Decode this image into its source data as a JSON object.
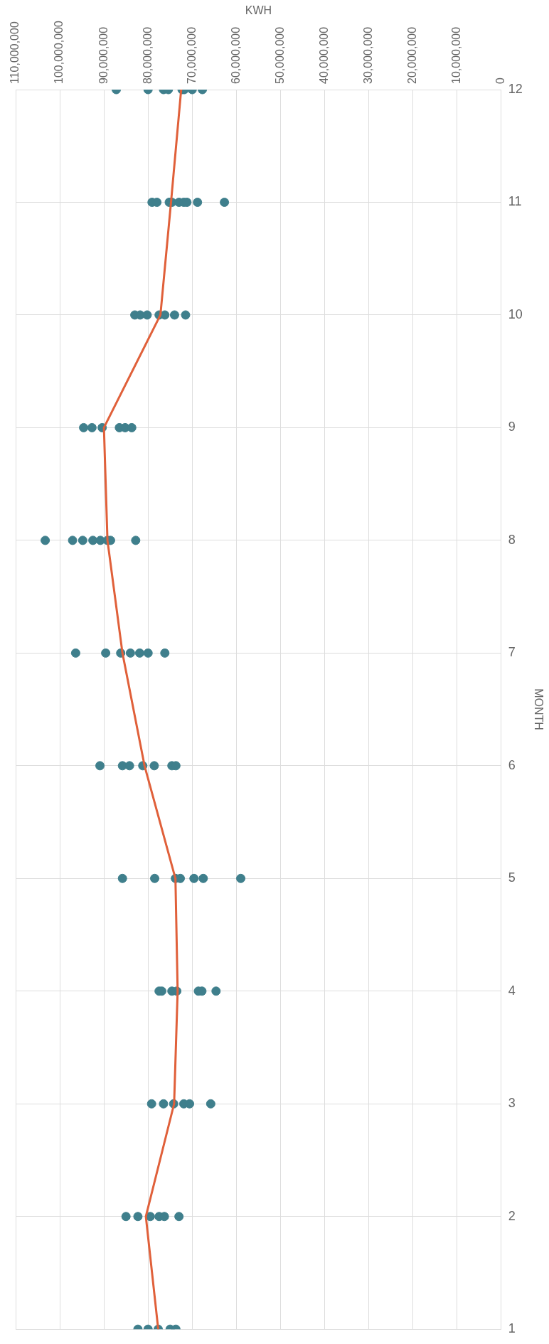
{
  "chart_data": {
    "type": "scatter",
    "xlabel": "KWH",
    "ylabel": "MONTH",
    "ylim": [
      1,
      12
    ],
    "yticks": [
      1,
      2,
      3,
      4,
      5,
      6,
      7,
      8,
      9,
      10,
      11,
      12
    ],
    "xlim": [
      110000000,
      0
    ],
    "xticks": [
      0,
      {
        "value": 10000000,
        "label": "10,000,000"
      },
      {
        "value": 20000000,
        "label": "20,000,000"
      },
      {
        "value": 30000000,
        "label": "30,000,000"
      },
      {
        "value": 40000000,
        "label": "40,000,000"
      },
      {
        "value": 50000000,
        "label": "50,000,000"
      },
      {
        "value": 60000000,
        "label": "60,000,000"
      },
      {
        "value": 70000000,
        "label": "70,000,000"
      },
      {
        "value": 80000000,
        "label": "80,000,000"
      },
      {
        "value": 90000000,
        "label": "90,000,000"
      },
      {
        "value": 100000000,
        "label": "100,000,000"
      },
      {
        "value": 110000000,
        "label": "110,000,000"
      }
    ],
    "grid": true,
    "legend": false,
    "series": [
      {
        "type": "scatter",
        "color": "#3f7f8c",
        "marker": "circle",
        "values": [
          1,
          1,
          1,
          1,
          1,
          2,
          2,
          2,
          2,
          2,
          2,
          3,
          3,
          3,
          3,
          3,
          3,
          4,
          4,
          4,
          4,
          4,
          4,
          4,
          5,
          5,
          5,
          5,
          5,
          5,
          5,
          6,
          6,
          6,
          6,
          6,
          6,
          6,
          7,
          7,
          7,
          7,
          7,
          7,
          7,
          8,
          8,
          8,
          8,
          8,
          8,
          8,
          8,
          9,
          9,
          9,
          9,
          9,
          9,
          10,
          10,
          10,
          10,
          10,
          10,
          10,
          11,
          11,
          11,
          11,
          11,
          11,
          11,
          11,
          11,
          12,
          12,
          12,
          12,
          12,
          12,
          12,
          12
        ],
        "x": [
          82300000,
          80000000,
          77700000,
          75000000,
          73700000,
          85000000,
          82300000,
          79500000,
          77500000,
          76300000,
          73000000,
          79200000,
          76500000,
          74200000,
          71900000,
          70600000,
          65800000,
          77500000,
          76900000,
          74600000,
          73500000,
          68600000,
          67800000,
          64600000,
          85800000,
          78500000,
          73800000,
          72700000,
          69600000,
          67500000,
          59000000,
          90900000,
          85800000,
          84200000,
          81200000,
          78600000,
          74600000,
          73700000,
          96400000,
          89600000,
          86200000,
          84000000,
          81900000,
          80000000,
          76200000,
          103300000,
          97100000,
          94800000,
          92500000,
          90800000,
          89200000,
          88500000,
          82800000,
          94600000,
          92700000,
          90400000,
          86500000,
          85200000,
          83700000,
          83000000,
          81800000,
          80200000,
          77500000,
          76200000,
          74000000,
          71500000,
          79100000,
          78000000,
          75200000,
          74600000,
          73000000,
          71900000,
          71200000,
          68800000,
          62700000,
          87200000,
          80000000,
          76500000,
          75400000,
          72300000,
          71800000,
          70000000,
          67700000
        ]
      },
      {
        "type": "line",
        "color": "#e0603a",
        "marker": "none",
        "line_style": "solid",
        "values": [
          1,
          2,
          3,
          4,
          5,
          6,
          7,
          8,
          9,
          10,
          11,
          12
        ],
        "x": [
          77700000,
          80500000,
          74100000,
          73300000,
          73800000,
          80800000,
          85800000,
          89200000,
          90000000,
          77200000,
          74800000,
          72500000
        ]
      }
    ]
  }
}
